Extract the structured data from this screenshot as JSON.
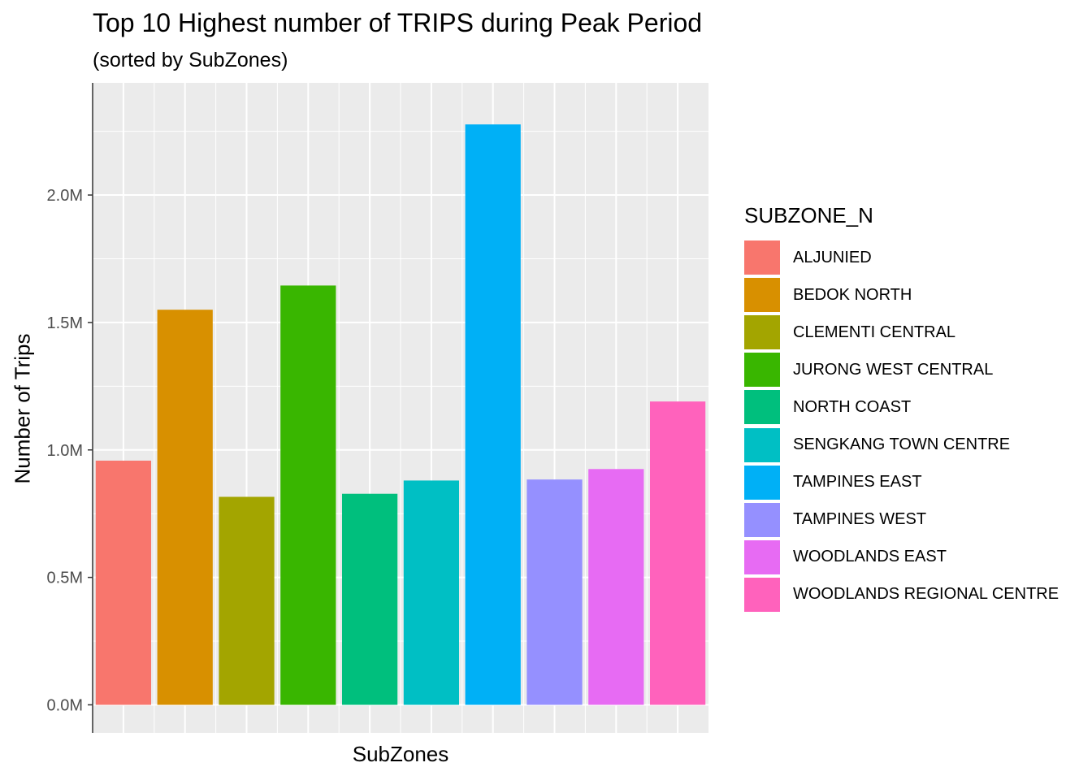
{
  "chart_data": {
    "type": "bar",
    "title": "Top 10 Highest number of TRIPS during Peak Period",
    "subtitle": "(sorted by SubZones)",
    "xlabel": "SubZones",
    "ylabel": "Number of Trips",
    "categories": [
      "ALJUNIED",
      "BEDOK NORTH",
      "CLEMENTI CENTRAL",
      "JURONG WEST CENTRAL",
      "NORTH COAST",
      "SENGKANG TOWN CENTRE",
      "TAMPINES EAST",
      "TAMPINES WEST",
      "WOODLANDS EAST",
      "WOODLANDS REGIONAL CENTRE"
    ],
    "values": [
      958000,
      1550000,
      816000,
      1645000,
      828000,
      880000,
      2277000,
      884000,
      925000,
      1190000
    ],
    "colors": [
      "#F8766D",
      "#D89000",
      "#A3A500",
      "#39B600",
      "#00BF7D",
      "#00BFC4",
      "#00B0F6",
      "#9590FF",
      "#E76BF3",
      "#FF62BC"
    ],
    "ylim": [
      -110000,
      2440000
    ],
    "yticks": [
      0,
      500000,
      1000000,
      1500000,
      2000000
    ],
    "ytick_labels": [
      "0.0M",
      "0.5M",
      "1.0M",
      "1.5M",
      "2.0M"
    ],
    "grid": true,
    "legend": {
      "title": "SUBZONE_N",
      "position": "right"
    }
  }
}
